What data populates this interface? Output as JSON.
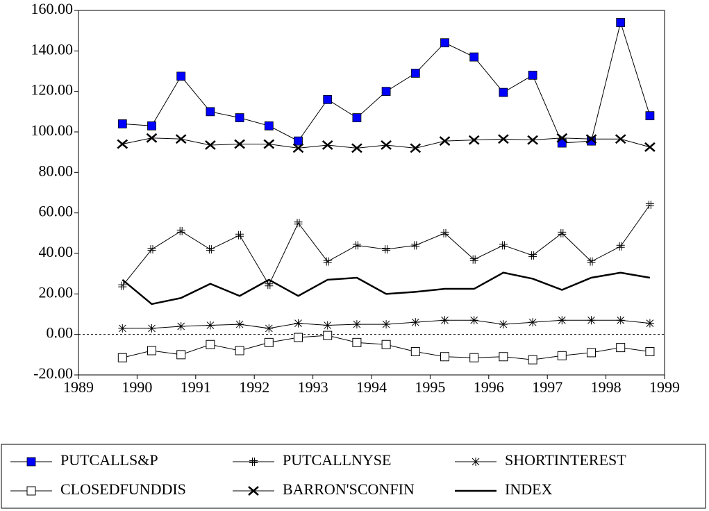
{
  "chart_data": {
    "type": "line",
    "x": [
      1989.75,
      1990.25,
      1990.75,
      1991.25,
      1991.75,
      1992.25,
      1992.75,
      1993.25,
      1993.75,
      1994.25,
      1994.75,
      1995.25,
      1995.75,
      1996.25,
      1996.75,
      1997.25,
      1997.75,
      1998.25,
      1998.75
    ],
    "series": [
      {
        "name": "PUTCALLS&P",
        "color": "#0000ff",
        "marker": "square-filled",
        "values": [
          104,
          103,
          127.5,
          110,
          107,
          103,
          95.5,
          116,
          107,
          120,
          129,
          144,
          137,
          119.5,
          128,
          94.5,
          95.5,
          154,
          108
        ]
      },
      {
        "name": "PUTCALLNYSE",
        "color": "#000000",
        "marker": "hash-plus",
        "values": [
          24,
          42,
          51,
          42,
          49,
          24.5,
          55,
          36,
          44,
          42,
          44,
          50,
          37,
          44,
          39,
          50,
          36,
          43.5,
          64
        ]
      },
      {
        "name": "SHORTINTEREST",
        "color": "#000000",
        "marker": "asterisk",
        "values": [
          3,
          3,
          4,
          4.5,
          5,
          3,
          5.5,
          4.5,
          5,
          5,
          6,
          7,
          7,
          5,
          6,
          7,
          7,
          7,
          5.5
        ]
      },
      {
        "name": "CLOSEDFUNDDIS",
        "color": "#000000",
        "marker": "square-open",
        "values": [
          -11.5,
          -8,
          -10,
          -5,
          -8,
          -4,
          -1.5,
          -0.5,
          -4,
          -5,
          -8.5,
          -11,
          -11.5,
          -11,
          -12.5,
          -10.5,
          -9,
          -6.5,
          -8.5
        ]
      },
      {
        "name": "BARRON'SCONFIN",
        "color": "#000000",
        "marker": "bold-x",
        "values": [
          94,
          97,
          96.5,
          93.5,
          94,
          94,
          92,
          93.5,
          92,
          93.5,
          92,
          95.5,
          96,
          96.5,
          96,
          97,
          96.5,
          96.5,
          92.5
        ]
      },
      {
        "name": "INDEX",
        "color": "#000000",
        "marker": "none",
        "line_width": 2.5,
        "values": [
          27,
          15,
          18,
          25,
          19,
          27,
          19,
          27,
          28,
          20,
          21,
          22.5,
          22.5,
          30.5,
          27.5,
          22,
          28,
          30.5,
          28
        ]
      }
    ],
    "xlim": [
      1989,
      1999
    ],
    "xticks": [
      1989,
      1990,
      1991,
      1992,
      1993,
      1994,
      1995,
      1996,
      1997,
      1998,
      1999
    ],
    "ylim": [
      -20,
      160
    ],
    "yticks": [
      {
        "value": -20,
        "label": "-20.00"
      },
      {
        "value": 0,
        "label": "0.00"
      },
      {
        "value": 20,
        "label": "20.00"
      },
      {
        "value": 40,
        "label": "40.00"
      },
      {
        "value": 60,
        "label": "60.00"
      },
      {
        "value": 80,
        "label": "80.00"
      },
      {
        "value": 100,
        "label": "100.00"
      },
      {
        "value": 120,
        "label": "120.00"
      },
      {
        "value": 140,
        "label": "140.00"
      },
      {
        "value": 160,
        "label": "160.00"
      }
    ],
    "legend": "bottom"
  }
}
